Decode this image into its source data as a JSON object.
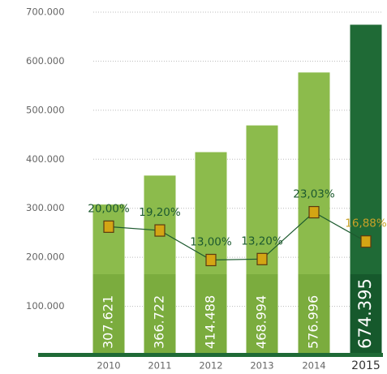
{
  "chart_data": {
    "type": "bar",
    "categories": [
      "2010",
      "2011",
      "2012",
      "2013",
      "2014",
      "2015"
    ],
    "series": [
      {
        "type": "bar",
        "color": "#8cbb4c",
        "highlight_color": "#1f6a36",
        "values": [
          307621,
          366722,
          414488,
          468994,
          576996,
          674395
        ],
        "value_labels": [
          "307.621",
          "366.722",
          "414.488",
          "468.994",
          "576.996",
          "674.395"
        ]
      },
      {
        "type": "line",
        "axis": "y2",
        "color": "#1d5a2f",
        "marker_color": "#d4a514",
        "highlight_label_color": "#c9a227",
        "values": [
          20,
          19.2,
          13,
          13.2,
          23.03,
          16.88
        ],
        "value_labels": [
          "20,00%",
          "19,20%",
          "13,00%",
          "13,20%",
          "23,03%",
          "16,88%"
        ]
      }
    ],
    "ylim": [
      0,
      700000
    ],
    "yticks": [
      {
        "value": 100000,
        "label": "100.000"
      },
      {
        "value": 200000,
        "label": "200.000"
      },
      {
        "value": 300000,
        "label": "300.000"
      },
      {
        "value": 400000,
        "label": "400.000"
      },
      {
        "value": 500000,
        "label": "500.000"
      },
      {
        "value": 600000,
        "label": "600.000"
      },
      {
        "value": 700000,
        "label": "700.000"
      }
    ],
    "y2lim": [
      -7,
      65
    ],
    "grid": true
  }
}
